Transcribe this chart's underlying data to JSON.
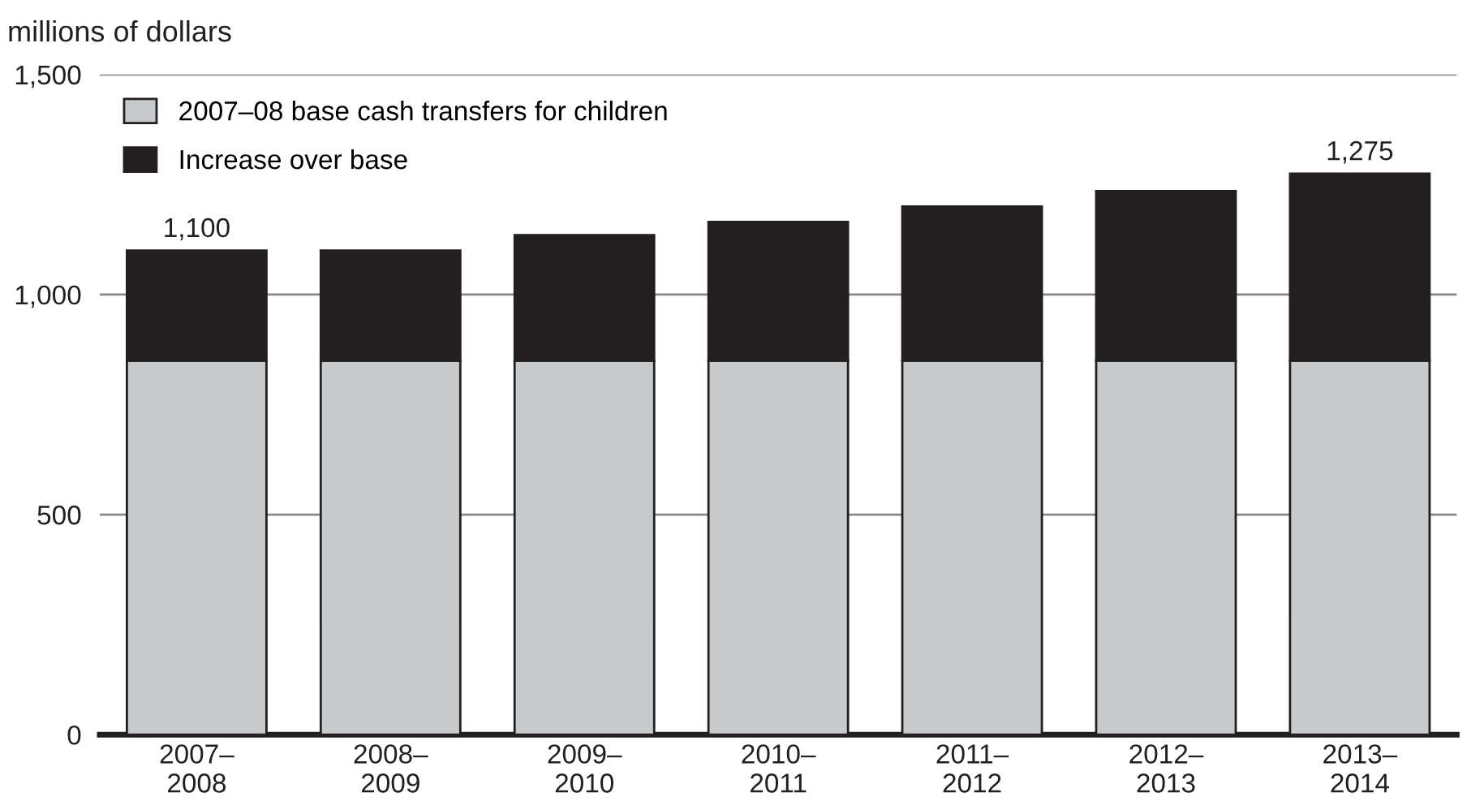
{
  "chart_data": {
    "type": "bar",
    "stacked": true,
    "ylabel": "millions of dollars",
    "categories": [
      "2007–\n2008",
      "2008–\n2009",
      "2009–\n2010",
      "2010–\n2011",
      "2011–\n2012",
      "2012–\n2013",
      "2013–\n2014"
    ],
    "series": [
      {
        "name": "2007–08 base cash transfers for children",
        "color": "#c8c9cb",
        "values": [
          850,
          850,
          850,
          850,
          850,
          850,
          850
        ]
      },
      {
        "name": "Increase over base",
        "color": "#231f20",
        "values": [
          250,
          250,
          285,
          315,
          350,
          385,
          425
        ]
      }
    ],
    "totals": [
      "1,100",
      null,
      null,
      null,
      null,
      null,
      "1,275"
    ],
    "ylim": [
      0,
      1500
    ],
    "yticks": [
      0,
      {
        "value": 500,
        "label": "500"
      },
      {
        "value": 1000,
        "label": "1,000"
      },
      {
        "value": 1500,
        "label": "1,500"
      }
    ],
    "grid": "y",
    "legend": "top left"
  }
}
